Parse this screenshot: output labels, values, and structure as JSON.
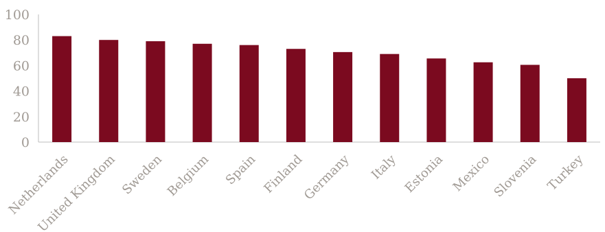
{
  "chart_data": {
    "type": "bar",
    "title": "",
    "xlabel": "",
    "ylabel": "",
    "categories": [
      "Netherlands",
      "United Kingdom",
      "Sweden",
      "Belgium",
      "Spain",
      "Finland",
      "Germany",
      "Italy",
      "Estonia",
      "Mexico",
      "Slovenia",
      "Turkey"
    ],
    "values": [
      83,
      80,
      79,
      77,
      76,
      73,
      70.5,
      69,
      65.5,
      62.5,
      60.5,
      50
    ],
    "ylim": [
      0,
      100
    ],
    "yticks": [
      "0",
      "20",
      "40",
      "60",
      "80",
      "100"
    ],
    "grid": false,
    "legend": "none",
    "bar_color": "#7b0a1f"
  }
}
